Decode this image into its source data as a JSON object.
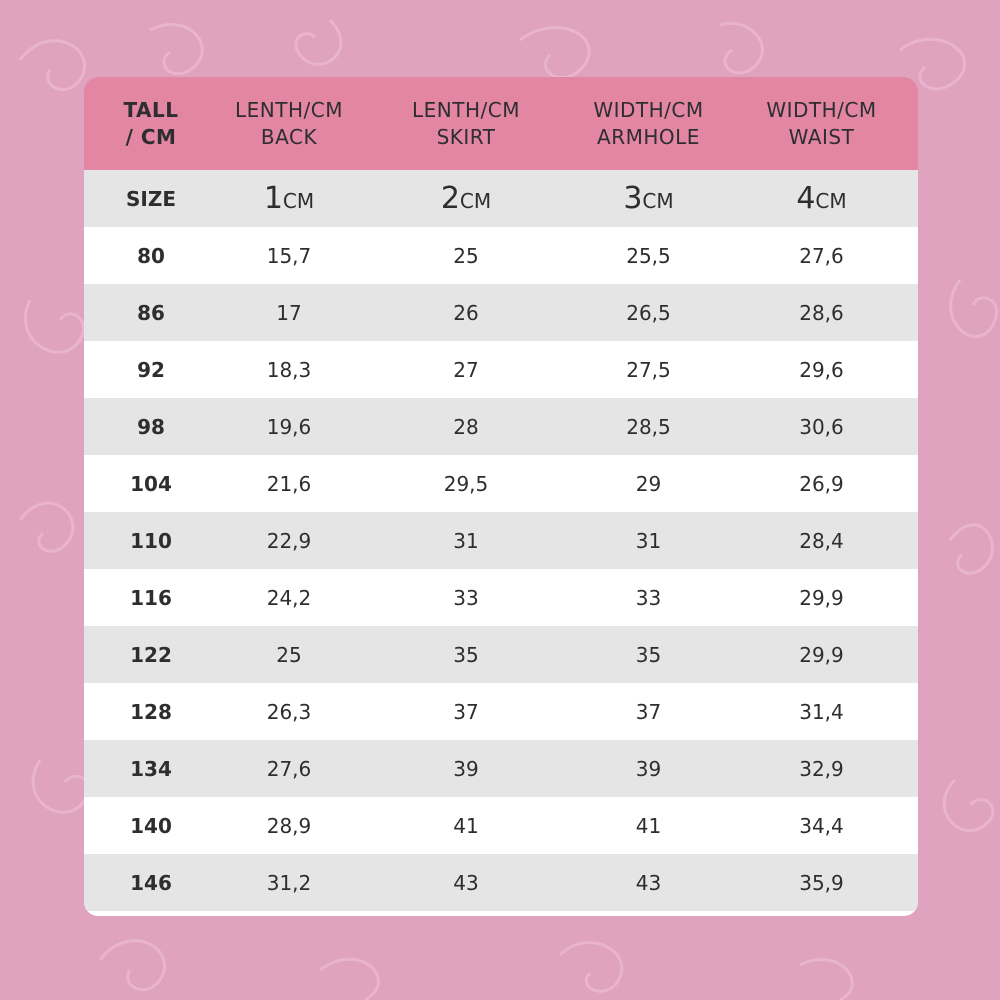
{
  "header": {
    "col0": [
      "TALL",
      "/ CM"
    ],
    "col1": [
      "LENTH/CM",
      "BACK"
    ],
    "col2": [
      "LENTH/CM",
      "SKIRT"
    ],
    "col3": [
      "WIDTH/CM",
      "ARMHOLE"
    ],
    "col4": [
      "WIDTH/CM",
      "WAIST"
    ]
  },
  "size_row": {
    "label": "SIZE",
    "cols": [
      {
        "num": "1",
        "unit": "CM"
      },
      {
        "num": "2",
        "unit": "CM"
      },
      {
        "num": "3",
        "unit": "CM"
      },
      {
        "num": "4",
        "unit": "CM"
      }
    ]
  },
  "rows": [
    [
      "80",
      "15,7",
      "25",
      "25,5",
      "27,6"
    ],
    [
      "86",
      "17",
      "26",
      "26,5",
      "28,6"
    ],
    [
      "92",
      "18,3",
      "27",
      "27,5",
      "29,6"
    ],
    [
      "98",
      "19,6",
      "28",
      "28,5",
      "30,6"
    ],
    [
      "104",
      "21,6",
      "29,5",
      "29",
      "26,9"
    ],
    [
      "110",
      "22,9",
      "31",
      "31",
      "28,4"
    ],
    [
      "116",
      "24,2",
      "33",
      "33",
      "29,9"
    ],
    [
      "122",
      "25",
      "35",
      "35",
      "29,9"
    ],
    [
      "128",
      "26,3",
      "37",
      "37",
      "31,4"
    ],
    [
      "134",
      "27,6",
      "39",
      "39",
      "32,9"
    ],
    [
      "140",
      "28,9",
      "41",
      "41",
      "34,4"
    ],
    [
      "146",
      "31,2",
      "43",
      "43",
      "35,9"
    ]
  ],
  "colors": {
    "background": "#e0a3bf",
    "header": "#e386a4",
    "stripe": "#e5e5e5",
    "text": "#2e2e2e"
  }
}
